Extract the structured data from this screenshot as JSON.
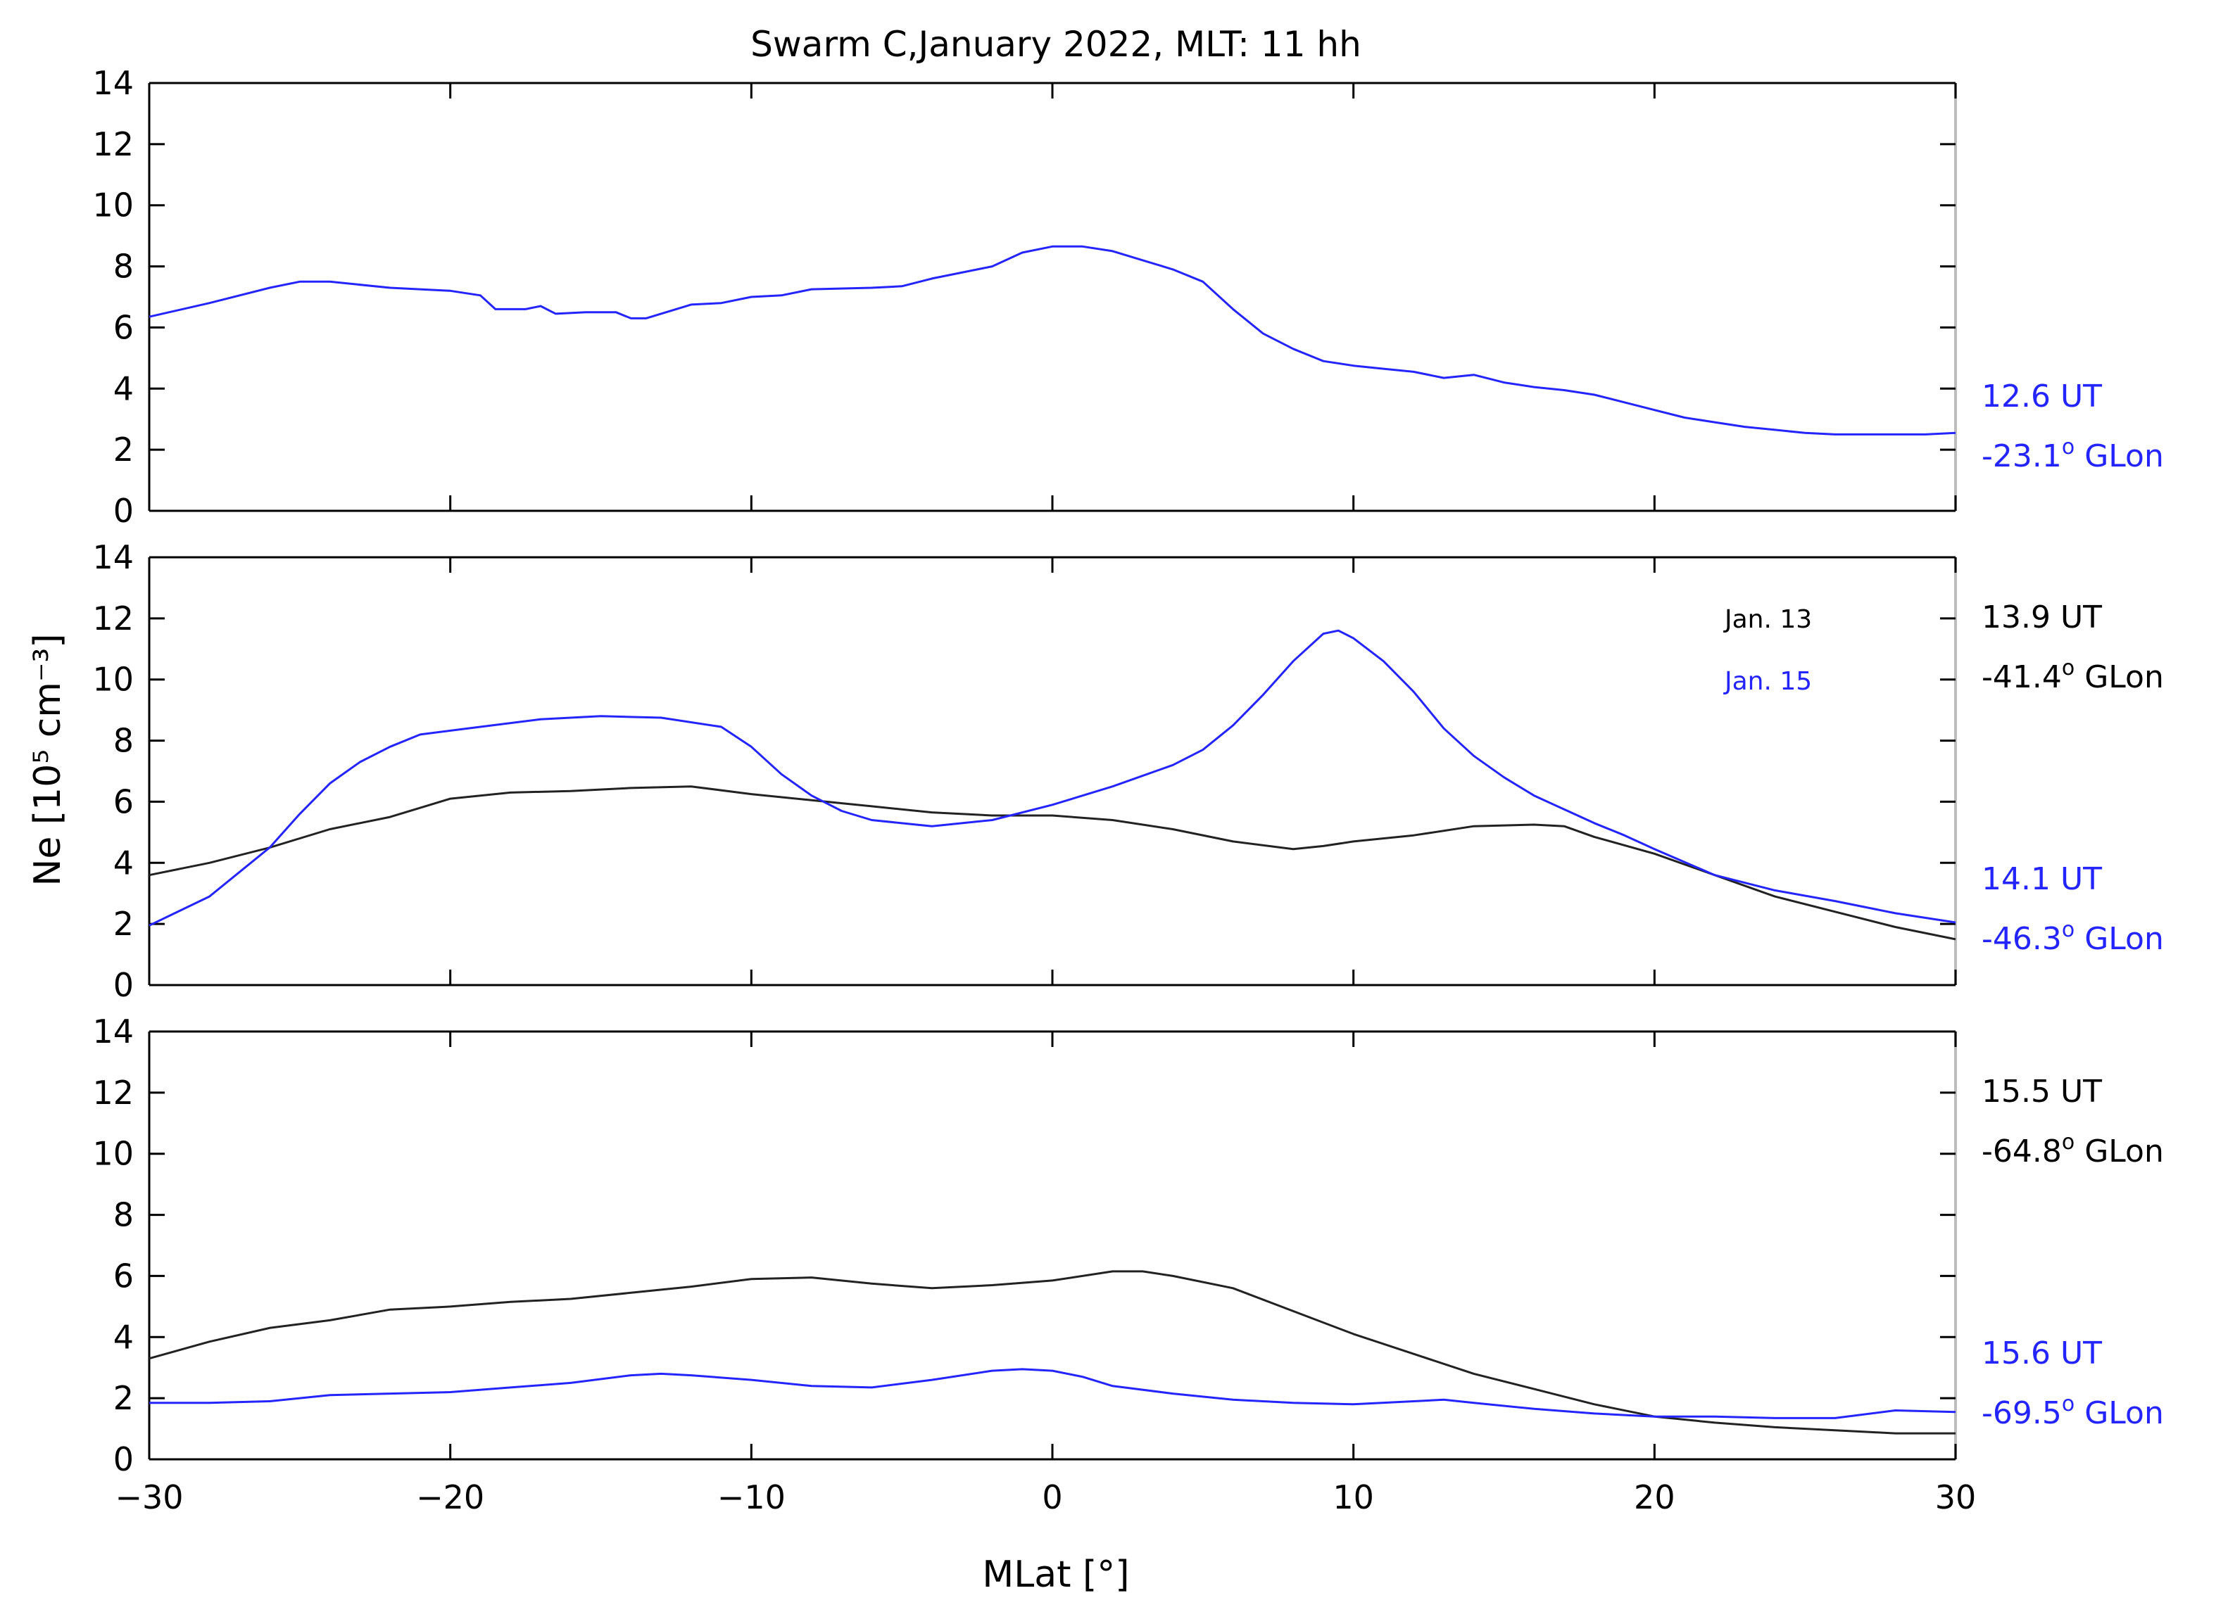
{
  "colors": {
    "black_series": "#222222",
    "blue_series": "#2424ff",
    "text_black": "#000000",
    "text_blue": "#2424ff"
  },
  "chart_data": {
    "type": "line",
    "title": "Swarm C,January 2022, MLT: 11 hh",
    "xlabel": "MLat [°]",
    "ylabel": "Ne [10⁵ cm⁻³]",
    "xlim": [
      -30,
      30
    ],
    "ylim": [
      0,
      14
    ],
    "x_ticks": [
      -30,
      -20,
      -10,
      0,
      10,
      20,
      30
    ],
    "y_ticks": [
      0,
      2,
      4,
      6,
      8,
      10,
      12,
      14
    ],
    "legend": [
      {
        "name": "Jan. 13",
        "color": "#000000"
      },
      {
        "name": "Jan. 15",
        "color": "#2424ff"
      }
    ],
    "panels": [
      {
        "id": "top",
        "series": [
          {
            "name": "Jan. 15",
            "color": "#2424ff",
            "ut": "12.6 UT",
            "glon": "-23.1",
            "points": [
              [
                -30,
                6.35
              ],
              [
                -28,
                6.8
              ],
              [
                -26,
                7.3
              ],
              [
                -25,
                7.5
              ],
              [
                -24,
                7.5
              ],
              [
                -22,
                7.3
              ],
              [
                -20,
                7.2
              ],
              [
                -19,
                7.05
              ],
              [
                -18.5,
                6.6
              ],
              [
                -17.5,
                6.6
              ],
              [
                -17,
                6.7
              ],
              [
                -16.5,
                6.45
              ],
              [
                -15.5,
                6.5
              ],
              [
                -14.5,
                6.5
              ],
              [
                -14,
                6.3
              ],
              [
                -13.5,
                6.3
              ],
              [
                -12,
                6.75
              ],
              [
                -11,
                6.8
              ],
              [
                -10,
                7.0
              ],
              [
                -9,
                7.05
              ],
              [
                -8,
                7.25
              ],
              [
                -6,
                7.3
              ],
              [
                -5,
                7.35
              ],
              [
                -4,
                7.6
              ],
              [
                -2,
                8.0
              ],
              [
                -1,
                8.45
              ],
              [
                0,
                8.65
              ],
              [
                1,
                8.65
              ],
              [
                2,
                8.5
              ],
              [
                3,
                8.2
              ],
              [
                4,
                7.9
              ],
              [
                5,
                7.5
              ],
              [
                6,
                6.6
              ],
              [
                7,
                5.8
              ],
              [
                8,
                5.3
              ],
              [
                9,
                4.9
              ],
              [
                10,
                4.75
              ],
              [
                11,
                4.65
              ],
              [
                12,
                4.55
              ],
              [
                13,
                4.35
              ],
              [
                14,
                4.45
              ],
              [
                15,
                4.2
              ],
              [
                16,
                4.05
              ],
              [
                17,
                3.95
              ],
              [
                18,
                3.8
              ],
              [
                19,
                3.55
              ],
              [
                20,
                3.3
              ],
              [
                21,
                3.05
              ],
              [
                22,
                2.9
              ],
              [
                23,
                2.75
              ],
              [
                24,
                2.65
              ],
              [
                25,
                2.55
              ],
              [
                26,
                2.5
              ],
              [
                27,
                2.5
              ],
              [
                28,
                2.5
              ],
              [
                29,
                2.5
              ],
              [
                30,
                2.55
              ]
            ]
          }
        ],
        "side_labels": [
          {
            "ut": "12.6 UT",
            "glon": "-23.1",
            "color": "#2424ff"
          }
        ]
      },
      {
        "id": "middle",
        "series": [
          {
            "name": "Jan. 13",
            "color": "#222222",
            "points": [
              [
                -30,
                3.6
              ],
              [
                -28,
                4.0
              ],
              [
                -26,
                4.5
              ],
              [
                -24,
                5.1
              ],
              [
                -22,
                5.5
              ],
              [
                -20,
                6.1
              ],
              [
                -18,
                6.3
              ],
              [
                -16,
                6.35
              ],
              [
                -14,
                6.45
              ],
              [
                -12,
                6.5
              ],
              [
                -10,
                6.25
              ],
              [
                -8,
                6.05
              ],
              [
                -6,
                5.85
              ],
              [
                -4,
                5.65
              ],
              [
                -2,
                5.55
              ],
              [
                0,
                5.55
              ],
              [
                2,
                5.4
              ],
              [
                4,
                5.1
              ],
              [
                6,
                4.7
              ],
              [
                8,
                4.45
              ],
              [
                9,
                4.55
              ],
              [
                10,
                4.7
              ],
              [
                12,
                4.9
              ],
              [
                14,
                5.2
              ],
              [
                16,
                5.25
              ],
              [
                17,
                5.2
              ],
              [
                18,
                4.85
              ],
              [
                20,
                4.3
              ],
              [
                22,
                3.6
              ],
              [
                24,
                2.9
              ],
              [
                26,
                2.4
              ],
              [
                28,
                1.9
              ],
              [
                30,
                1.5
              ]
            ]
          },
          {
            "name": "Jan. 15",
            "color": "#2424ff",
            "points": [
              [
                -30,
                1.95
              ],
              [
                -28,
                2.9
              ],
              [
                -26,
                4.5
              ],
              [
                -25,
                5.6
              ],
              [
                -24,
                6.6
              ],
              [
                -23,
                7.3
              ],
              [
                -22,
                7.8
              ],
              [
                -21,
                8.2
              ],
              [
                -19,
                8.45
              ],
              [
                -17,
                8.7
              ],
              [
                -15,
                8.8
              ],
              [
                -13,
                8.75
              ],
              [
                -11,
                8.45
              ],
              [
                -10,
                7.8
              ],
              [
                -9,
                6.9
              ],
              [
                -8,
                6.2
              ],
              [
                -7,
                5.7
              ],
              [
                -6,
                5.4
              ],
              [
                -4,
                5.2
              ],
              [
                -2,
                5.4
              ],
              [
                0,
                5.9
              ],
              [
                2,
                6.5
              ],
              [
                4,
                7.2
              ],
              [
                5,
                7.7
              ],
              [
                6,
                8.5
              ],
              [
                7,
                9.5
              ],
              [
                8,
                10.6
              ],
              [
                9,
                11.5
              ],
              [
                9.5,
                11.6
              ],
              [
                10,
                11.35
              ],
              [
                11,
                10.6
              ],
              [
                12,
                9.6
              ],
              [
                13,
                8.4
              ],
              [
                14,
                7.5
              ],
              [
                15,
                6.8
              ],
              [
                16,
                6.2
              ],
              [
                17,
                5.75
              ],
              [
                18,
                5.3
              ],
              [
                19,
                4.9
              ],
              [
                20,
                4.45
              ],
              [
                22,
                3.6
              ],
              [
                24,
                3.1
              ],
              [
                26,
                2.75
              ],
              [
                28,
                2.35
              ],
              [
                30,
                2.05
              ]
            ]
          }
        ],
        "side_labels": [
          {
            "ut": "13.9 UT",
            "glon": "-41.4",
            "color": "#000000"
          },
          {
            "ut": "14.1 UT",
            "glon": "-46.3",
            "color": "#2424ff"
          }
        ]
      },
      {
        "id": "bottom",
        "series": [
          {
            "name": "Jan. 13",
            "color": "#222222",
            "points": [
              [
                -30,
                3.3
              ],
              [
                -28,
                3.85
              ],
              [
                -26,
                4.3
              ],
              [
                -24,
                4.55
              ],
              [
                -22,
                4.9
              ],
              [
                -20,
                5.0
              ],
              [
                -18,
                5.15
              ],
              [
                -16,
                5.25
              ],
              [
                -14,
                5.45
              ],
              [
                -12,
                5.65
              ],
              [
                -10,
                5.9
              ],
              [
                -8,
                5.95
              ],
              [
                -6,
                5.75
              ],
              [
                -4,
                5.6
              ],
              [
                -2,
                5.7
              ],
              [
                0,
                5.85
              ],
              [
                2,
                6.15
              ],
              [
                3,
                6.15
              ],
              [
                4,
                6.0
              ],
              [
                6,
                5.6
              ],
              [
                8,
                4.85
              ],
              [
                10,
                4.1
              ],
              [
                12,
                3.45
              ],
              [
                14,
                2.8
              ],
              [
                16,
                2.3
              ],
              [
                18,
                1.8
              ],
              [
                20,
                1.4
              ],
              [
                22,
                1.2
              ],
              [
                24,
                1.05
              ],
              [
                26,
                0.95
              ],
              [
                28,
                0.85
              ],
              [
                30,
                0.85
              ]
            ]
          },
          {
            "name": "Jan. 15",
            "color": "#2424ff",
            "points": [
              [
                -30,
                1.85
              ],
              [
                -28,
                1.85
              ],
              [
                -26,
                1.9
              ],
              [
                -24,
                2.1
              ],
              [
                -22,
                2.15
              ],
              [
                -20,
                2.2
              ],
              [
                -18,
                2.35
              ],
              [
                -16,
                2.5
              ],
              [
                -14,
                2.75
              ],
              [
                -13,
                2.8
              ],
              [
                -12,
                2.75
              ],
              [
                -10,
                2.6
              ],
              [
                -8,
                2.4
              ],
              [
                -6,
                2.35
              ],
              [
                -4,
                2.6
              ],
              [
                -2,
                2.9
              ],
              [
                -1,
                2.95
              ],
              [
                0,
                2.9
              ],
              [
                1,
                2.7
              ],
              [
                2,
                2.4
              ],
              [
                4,
                2.15
              ],
              [
                6,
                1.95
              ],
              [
                8,
                1.85
              ],
              [
                10,
                1.8
              ],
              [
                12,
                1.9
              ],
              [
                13,
                1.95
              ],
              [
                14,
                1.85
              ],
              [
                16,
                1.65
              ],
              [
                18,
                1.5
              ],
              [
                20,
                1.4
              ],
              [
                22,
                1.4
              ],
              [
                24,
                1.35
              ],
              [
                26,
                1.35
              ],
              [
                28,
                1.6
              ],
              [
                30,
                1.55
              ]
            ]
          }
        ],
        "side_labels": [
          {
            "ut": "15.5 UT",
            "glon": "-64.8",
            "color": "#000000"
          },
          {
            "ut": "15.6 UT",
            "glon": "-69.5",
            "color": "#2424ff"
          }
        ]
      }
    ]
  }
}
